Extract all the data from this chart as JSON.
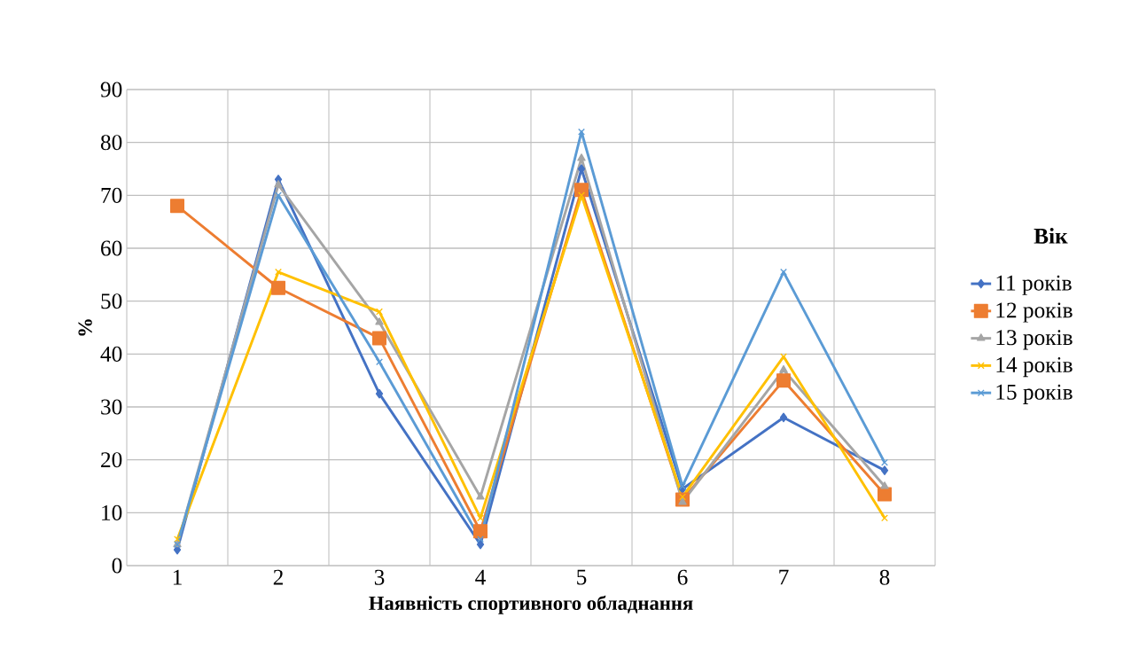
{
  "chart_data": {
    "type": "line",
    "xlabel": "Наявність спортивного обладнання",
    "ylabel": "%",
    "legend_title": "Вік",
    "categories": [
      "1",
      "2",
      "3",
      "4",
      "5",
      "6",
      "7",
      "8"
    ],
    "series": [
      {
        "name": "11 років",
        "color": "#4472c4",
        "marker": "diamond",
        "values": [
          3,
          73,
          32.5,
          4,
          75,
          14.5,
          28,
          18
        ]
      },
      {
        "name": "12 років",
        "color": "#ed7d31",
        "marker": "square",
        "values": [
          68,
          52.5,
          43,
          6.5,
          71,
          12.5,
          35,
          13.5
        ]
      },
      {
        "name": "13 років",
        "color": "#a5a5a5",
        "marker": "triangle",
        "values": [
          4,
          72,
          46,
          13,
          77,
          12,
          37,
          15
        ]
      },
      {
        "name": "14 років",
        "color": "#ffc000",
        "marker": "cross",
        "values": [
          5,
          55.5,
          48,
          9,
          70,
          13,
          39.5,
          9
        ]
      },
      {
        "name": "15 років",
        "color": "#5b9bd5",
        "marker": "cross",
        "values": [
          4,
          70,
          38.5,
          5,
          82,
          15,
          55.5,
          19.5
        ]
      }
    ],
    "ylim": [
      0,
      90
    ],
    "yticks": [
      0,
      10,
      20,
      30,
      40,
      50,
      60,
      70,
      80,
      90
    ],
    "grid": true,
    "legend": "right"
  }
}
